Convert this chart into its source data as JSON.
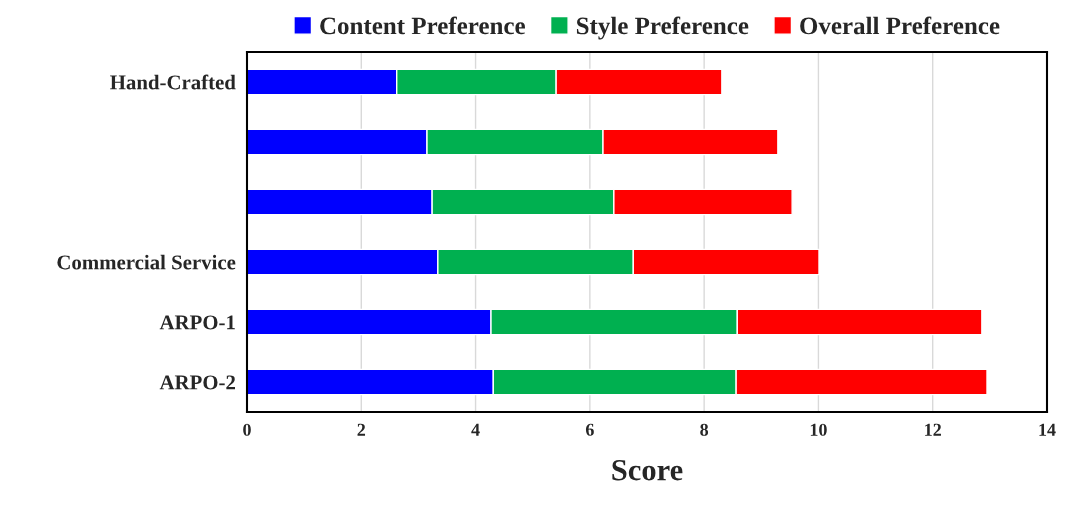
{
  "chart_data": {
    "type": "bar",
    "orientation": "horizontal",
    "stacked": true,
    "xlabel": "Score",
    "categories": [
      "Hand-Crafted",
      null,
      null,
      "Commercial Service",
      "ARPO-1",
      "ARPO-2"
    ],
    "series": [
      {
        "name": "Content Preference",
        "color": "#0000ff",
        "values": [
          2.62,
          3.15,
          3.24,
          3.34,
          4.27,
          4.31
        ]
      },
      {
        "name": "Style Preference",
        "color": "#00b050",
        "values": [
          2.79,
          3.08,
          3.18,
          3.42,
          4.31,
          4.25
        ]
      },
      {
        "name": "Overall Preference",
        "color": "#ff0000",
        "values": [
          2.9,
          3.06,
          3.12,
          3.25,
          4.28,
          4.39
        ]
      }
    ],
    "xlim": [
      0,
      14
    ],
    "xticks": [
      0,
      2,
      4,
      6,
      8,
      10,
      12,
      14
    ],
    "grid": "x",
    "legend": "top"
  }
}
